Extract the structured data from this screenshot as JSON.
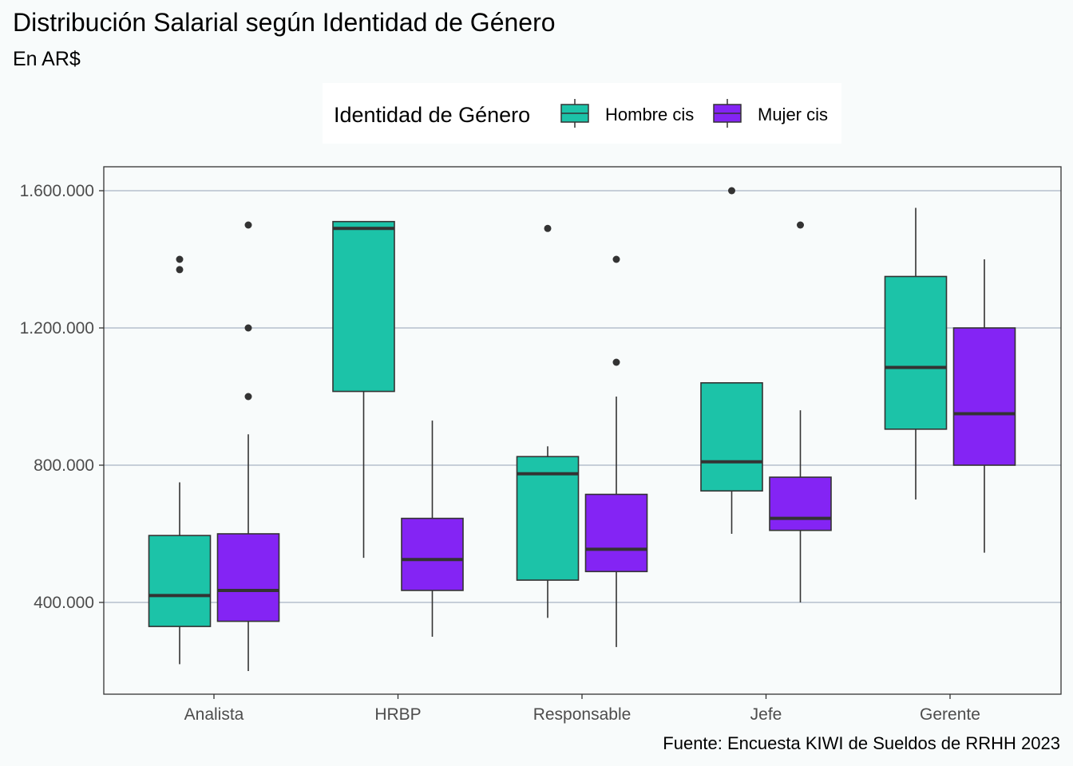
{
  "chart_data": {
    "type": "boxplot",
    "title": "Distribución Salarial según Identidad de Género",
    "subtitle": "En AR$",
    "caption": "Fuente: Encuesta KIWI de Sueldos de RRHH 2023",
    "legend": {
      "title": "Identidad de Género",
      "position": "top",
      "entries": [
        {
          "name": "Hombre cis",
          "color": "#1cc3a8"
        },
        {
          "name": "Mujer cis",
          "color": "#8424f4"
        }
      ]
    },
    "xlabel": "",
    "ylabel": "",
    "ylim": [
      130000,
      1670000
    ],
    "yticks": [
      400000,
      800000,
      1200000,
      1600000
    ],
    "ytick_labels": [
      "400.000",
      "800.000",
      "1.200.000",
      "1.600.000"
    ],
    "grid": {
      "major_y": true,
      "major_x": false
    },
    "categories": [
      "Analista",
      "HRBP",
      "Responsable",
      "Jefe",
      "Gerente"
    ],
    "series": [
      {
        "name": "Hombre cis",
        "color": "#1cc3a8",
        "boxes": [
          {
            "whisker_low": 220000,
            "q1": 330000,
            "median": 420000,
            "q3": 595000,
            "whisker_high": 750000,
            "outliers": [
              1370000,
              1400000
            ]
          },
          {
            "whisker_low": 530000,
            "q1": 1015000,
            "median": 1490000,
            "q3": 1510000,
            "whisker_high": 1510000,
            "outliers": []
          },
          {
            "whisker_low": 355000,
            "q1": 465000,
            "median": 775000,
            "q3": 825000,
            "whisker_high": 855000,
            "outliers": [
              1490000
            ]
          },
          {
            "whisker_low": 600000,
            "q1": 725000,
            "median": 810000,
            "q3": 1040000,
            "whisker_high": 1040000,
            "outliers": [
              1600000
            ]
          },
          {
            "whisker_low": 700000,
            "q1": 905000,
            "median": 1085000,
            "q3": 1350000,
            "whisker_high": 1550000,
            "outliers": []
          }
        ]
      },
      {
        "name": "Mujer cis",
        "color": "#8424f4",
        "boxes": [
          {
            "whisker_low": 200000,
            "q1": 345000,
            "median": 435000,
            "q3": 600000,
            "whisker_high": 890000,
            "outliers": [
              1000000,
              1200000,
              1500000
            ]
          },
          {
            "whisker_low": 300000,
            "q1": 435000,
            "median": 525000,
            "q3": 645000,
            "whisker_high": 930000,
            "outliers": []
          },
          {
            "whisker_low": 270000,
            "q1": 490000,
            "median": 555000,
            "q3": 715000,
            "whisker_high": 1000000,
            "outliers": [
              1100000,
              1400000
            ]
          },
          {
            "whisker_low": 400000,
            "q1": 610000,
            "median": 645000,
            "q3": 765000,
            "whisker_high": 960000,
            "outliers": [
              1500000
            ]
          },
          {
            "whisker_low": 545000,
            "q1": 800000,
            "median": 950000,
            "q3": 1200000,
            "whisker_high": 1400000,
            "outliers": []
          }
        ]
      }
    ]
  }
}
